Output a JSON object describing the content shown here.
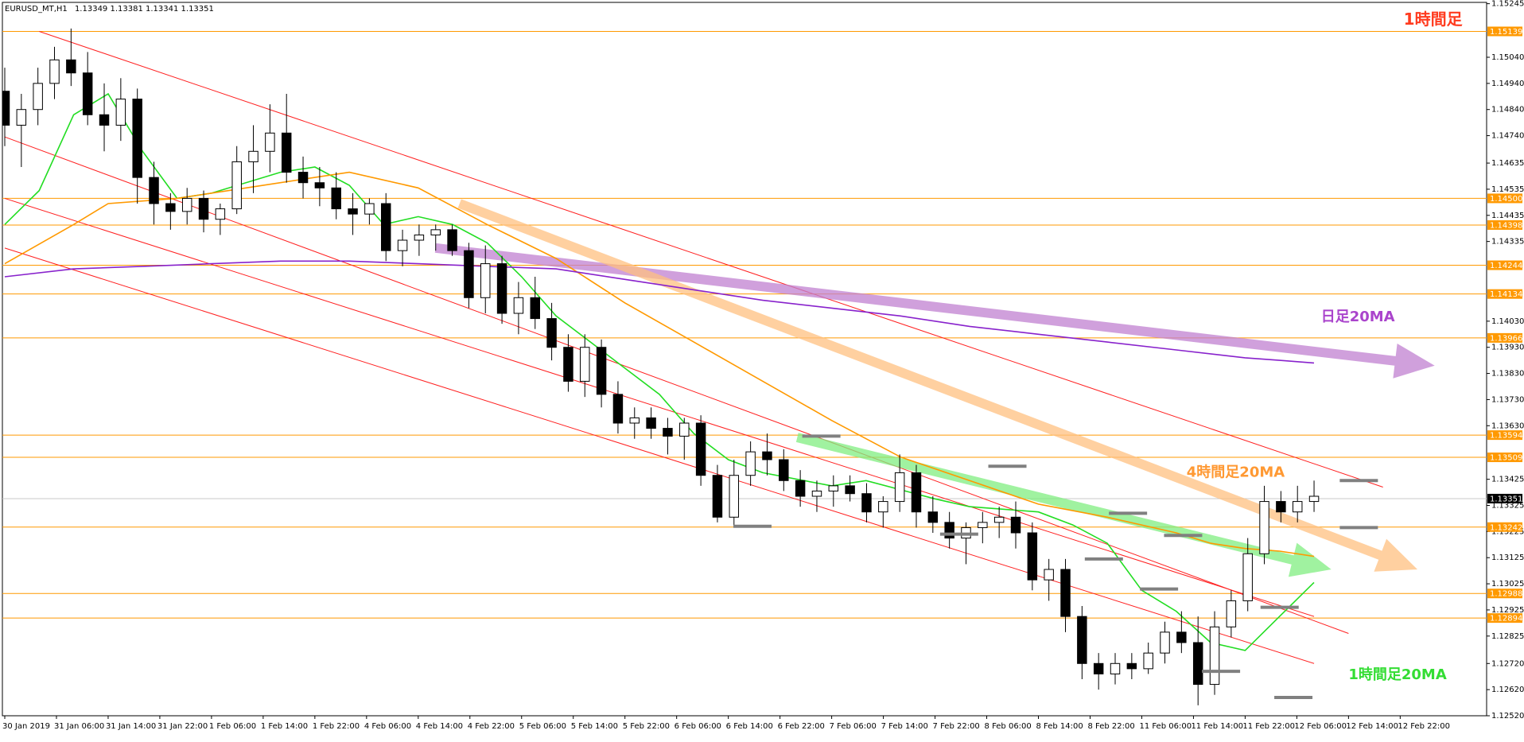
{
  "header": {
    "symbol": "EURUSD_MT,H1",
    "ohlc": "1.13349 1.13381 1.13341 1.13351"
  },
  "chart_data": {
    "type": "candlestick",
    "title": "1時間足",
    "ylim": [
      1.1252,
      1.1525
    ],
    "grid": false,
    "y_ticks": [
      "1.15245",
      "1.15040",
      "1.14940",
      "1.14840",
      "1.14740",
      "1.14635",
      "1.14535",
      "1.14435",
      "1.14335",
      "1.14030",
      "1.13930",
      "1.13830",
      "1.13730",
      "1.13630",
      "1.13425",
      "1.13325",
      "1.13225",
      "1.13125",
      "1.13025",
      "1.12925",
      "1.12825",
      "1.12720",
      "1.12620",
      "1.12520"
    ],
    "x_tick_labels": [
      "30 Jan 2019",
      "31 Jan 06:00",
      "31 Jan 14:00",
      "31 Jan 22:00",
      "1 Feb 06:00",
      "1 Feb 14:00",
      "1 Feb 22:00",
      "4 Feb 06:00",
      "4 Feb 14:00",
      "4 Feb 22:00",
      "5 Feb 06:00",
      "5 Feb 14:00",
      "5 Feb 22:00",
      "6 Feb 06:00",
      "6 Feb 14:00",
      "6 Feb 22:00",
      "7 Feb 06:00",
      "7 Feb 14:00",
      "7 Feb 22:00",
      "8 Feb 06:00",
      "8 Feb 14:00",
      "8 Feb 22:00",
      "11 Feb 06:00",
      "11 Feb 14:00",
      "11 Feb 22:00",
      "12 Feb 06:00",
      "12 Feb 14:00",
      "12 Feb 22:00"
    ],
    "horizontal_levels": [
      {
        "value": 1.15139,
        "label": "1.15139"
      },
      {
        "value": 1.145,
        "label": "1.14500"
      },
      {
        "value": 1.14398,
        "label": "1.14398"
      },
      {
        "value": 1.14244,
        "label": "1.14244"
      },
      {
        "value": 1.14134,
        "label": "1.14134"
      },
      {
        "value": 1.13966,
        "label": "1.13966"
      },
      {
        "value": 1.13594,
        "label": "1.13594"
      },
      {
        "value": 1.13509,
        "label": "1.13509"
      },
      {
        "value": 1.13242,
        "label": "1.13242"
      },
      {
        "value": 1.12988,
        "label": "1.12988"
      },
      {
        "value": 1.12894,
        "label": "1.12894"
      }
    ],
    "current_price": {
      "value": 1.13351,
      "label": "1.13351"
    },
    "channel_lines": [
      {
        "x": [
          1,
          40
        ],
        "y": [
          1.15139,
          1.13395
        ]
      },
      {
        "x": [
          0,
          39
        ],
        "y": [
          1.14735,
          1.12835
        ]
      },
      {
        "x": [
          0,
          38
        ],
        "y": [
          1.145,
          1.129
        ]
      },
      {
        "x": [
          0,
          38
        ],
        "y": [
          1.1431,
          1.1272
        ]
      }
    ],
    "ma_lines": [
      {
        "name": "green",
        "color": "#22dd22",
        "points": [
          [
            0,
            1.144
          ],
          [
            1,
            1.1453
          ],
          [
            2,
            1.1482
          ],
          [
            3,
            1.149
          ],
          [
            4,
            1.1468
          ],
          [
            5,
            1.145
          ],
          [
            6,
            1.1452
          ],
          [
            8,
            1.146
          ],
          [
            9,
            1.1462
          ],
          [
            10,
            1.1455
          ],
          [
            11,
            1.144
          ],
          [
            12,
            1.1443
          ],
          [
            13,
            1.144
          ],
          [
            14,
            1.1433
          ],
          [
            15,
            1.142
          ],
          [
            16,
            1.1405
          ],
          [
            17,
            1.1395
          ],
          [
            18,
            1.1385
          ],
          [
            19,
            1.1375
          ],
          [
            20,
            1.136
          ],
          [
            21,
            1.135
          ],
          [
            22,
            1.1345
          ],
          [
            24,
            1.134
          ],
          [
            25,
            1.1342
          ],
          [
            27,
            1.1335
          ],
          [
            28,
            1.1332
          ],
          [
            30,
            1.133
          ],
          [
            31,
            1.1325
          ],
          [
            32,
            1.1318
          ],
          [
            33,
            1.13
          ],
          [
            34,
            1.1292
          ],
          [
            35,
            1.128
          ],
          [
            36,
            1.1277
          ],
          [
            37,
            1.129
          ],
          [
            38,
            1.1303
          ]
        ]
      },
      {
        "name": "orange",
        "color": "#ff9900",
        "points": [
          [
            0,
            1.1425
          ],
          [
            2,
            1.144
          ],
          [
            3,
            1.1448
          ],
          [
            5,
            1.145
          ],
          [
            7,
            1.1454
          ],
          [
            9,
            1.1458
          ],
          [
            10,
            1.146
          ],
          [
            12,
            1.1454
          ],
          [
            14,
            1.144
          ],
          [
            16,
            1.1427
          ],
          [
            18,
            1.141
          ],
          [
            20,
            1.1395
          ],
          [
            22,
            1.138
          ],
          [
            24,
            1.1365
          ],
          [
            26,
            1.1351
          ],
          [
            28,
            1.1342
          ],
          [
            30,
            1.1333
          ],
          [
            32,
            1.1328
          ],
          [
            34,
            1.1322
          ],
          [
            35,
            1.1318
          ],
          [
            36,
            1.1316
          ],
          [
            37,
            1.1315
          ],
          [
            38,
            1.1313
          ]
        ]
      },
      {
        "name": "purple",
        "color": "#8822cc",
        "points": [
          [
            0,
            1.142
          ],
          [
            2,
            1.1423
          ],
          [
            4,
            1.1424
          ],
          [
            6,
            1.1425
          ],
          [
            8,
            1.1426
          ],
          [
            10,
            1.1426
          ],
          [
            12,
            1.1425
          ],
          [
            14,
            1.1424
          ],
          [
            16,
            1.1423
          ],
          [
            18,
            1.1419
          ],
          [
            20,
            1.1415
          ],
          [
            22,
            1.1411
          ],
          [
            24,
            1.1408
          ],
          [
            26,
            1.1405
          ],
          [
            28,
            1.1401
          ],
          [
            30,
            1.1398
          ],
          [
            32,
            1.1395
          ],
          [
            34,
            1.1392
          ],
          [
            36,
            1.1389
          ],
          [
            37,
            1.1388
          ],
          [
            38,
            1.1387
          ]
        ]
      }
    ],
    "candles": [
      [
        1.1491,
        1.15,
        1.147,
        1.1478
      ],
      [
        1.1478,
        1.149,
        1.1462,
        1.1484
      ],
      [
        1.1484,
        1.15,
        1.1478,
        1.1494
      ],
      [
        1.1494,
        1.1508,
        1.1488,
        1.1503
      ],
      [
        1.1503,
        1.1515,
        1.1493,
        1.1498
      ],
      [
        1.1498,
        1.1506,
        1.1478,
        1.1482
      ],
      [
        1.1482,
        1.1494,
        1.1468,
        1.1478
      ],
      [
        1.1478,
        1.1496,
        1.1472,
        1.1488
      ],
      [
        1.1488,
        1.1492,
        1.1448,
        1.1458
      ],
      [
        1.1458,
        1.1464,
        1.144,
        1.1448
      ],
      [
        1.1448,
        1.1452,
        1.1438,
        1.1445
      ],
      [
        1.1445,
        1.1454,
        1.144,
        1.145
      ],
      [
        1.145,
        1.1453,
        1.1437,
        1.1442
      ],
      [
        1.1442,
        1.1448,
        1.1436,
        1.1446
      ],
      [
        1.1446,
        1.147,
        1.1444,
        1.1464
      ],
      [
        1.1464,
        1.1478,
        1.1452,
        1.1468
      ],
      [
        1.1468,
        1.1486,
        1.146,
        1.1475
      ],
      [
        1.1475,
        1.149,
        1.1456,
        1.146
      ],
      [
        1.146,
        1.1466,
        1.145,
        1.1456
      ],
      [
        1.1456,
        1.1462,
        1.1447,
        1.1454
      ],
      [
        1.1454,
        1.146,
        1.1442,
        1.1446
      ],
      [
        1.1446,
        1.1452,
        1.1436,
        1.1444
      ],
      [
        1.1444,
        1.145,
        1.144,
        1.1448
      ],
      [
        1.1448,
        1.1452,
        1.1426,
        1.143
      ],
      [
        1.143,
        1.1438,
        1.1424,
        1.1434
      ],
      [
        1.1434,
        1.144,
        1.1428,
        1.1436
      ],
      [
        1.1436,
        1.144,
        1.143,
        1.1438
      ],
      [
        1.1438,
        1.144,
        1.1428,
        1.143
      ],
      [
        1.143,
        1.1433,
        1.1408,
        1.1412
      ],
      [
        1.1412,
        1.1432,
        1.1406,
        1.1425
      ],
      [
        1.1425,
        1.1428,
        1.1402,
        1.1406
      ],
      [
        1.1406,
        1.1418,
        1.1398,
        1.1412
      ],
      [
        1.1412,
        1.142,
        1.14,
        1.1404
      ],
      [
        1.1404,
        1.141,
        1.1388,
        1.1393
      ],
      [
        1.1393,
        1.1398,
        1.1376,
        1.138
      ],
      [
        1.138,
        1.1398,
        1.1374,
        1.1393
      ],
      [
        1.1393,
        1.1396,
        1.137,
        1.1375
      ],
      [
        1.1375,
        1.138,
        1.136,
        1.1364
      ],
      [
        1.1364,
        1.137,
        1.1358,
        1.1366
      ],
      [
        1.1366,
        1.137,
        1.1358,
        1.1362
      ],
      [
        1.1362,
        1.1366,
        1.1352,
        1.1359
      ],
      [
        1.1359,
        1.1366,
        1.135,
        1.1364
      ],
      [
        1.1364,
        1.1367,
        1.134,
        1.1344
      ],
      [
        1.1344,
        1.1348,
        1.1326,
        1.1328
      ],
      [
        1.1328,
        1.135,
        1.1324,
        1.1344
      ],
      [
        1.1344,
        1.1357,
        1.134,
        1.1353
      ],
      [
        1.1353,
        1.136,
        1.1344,
        1.135
      ],
      [
        1.135,
        1.1354,
        1.1338,
        1.1342
      ],
      [
        1.1342,
        1.1346,
        1.1332,
        1.1336
      ],
      [
        1.1336,
        1.1342,
        1.133,
        1.1338
      ],
      [
        1.1338,
        1.1344,
        1.1332,
        1.134
      ],
      [
        1.134,
        1.1344,
        1.1334,
        1.1337
      ],
      [
        1.1337,
        1.1341,
        1.1326,
        1.133
      ],
      [
        1.133,
        1.1336,
        1.1324,
        1.1334
      ],
      [
        1.1334,
        1.1352,
        1.133,
        1.1345
      ],
      [
        1.1345,
        1.1348,
        1.1324,
        1.133
      ],
      [
        1.133,
        1.1336,
        1.1322,
        1.1326
      ],
      [
        1.1326,
        1.133,
        1.1316,
        1.132
      ],
      [
        1.132,
        1.1326,
        1.131,
        1.1324
      ],
      [
        1.1324,
        1.133,
        1.1318,
        1.1326
      ],
      [
        1.1326,
        1.1332,
        1.132,
        1.1328
      ],
      [
        1.1328,
        1.1334,
        1.1316,
        1.1322
      ],
      [
        1.1322,
        1.1326,
        1.13,
        1.1304
      ],
      [
        1.1304,
        1.1312,
        1.1296,
        1.1308
      ],
      [
        1.1308,
        1.1312,
        1.1284,
        1.129
      ],
      [
        1.129,
        1.1294,
        1.1266,
        1.1272
      ],
      [
        1.1272,
        1.1276,
        1.1262,
        1.1268
      ],
      [
        1.1268,
        1.1276,
        1.1264,
        1.1272
      ],
      [
        1.1272,
        1.1276,
        1.1266,
        1.127
      ],
      [
        1.127,
        1.128,
        1.1268,
        1.1276
      ],
      [
        1.1276,
        1.1288,
        1.1272,
        1.1284
      ],
      [
        1.1284,
        1.1292,
        1.1276,
        1.128
      ],
      [
        1.128,
        1.129,
        1.1256,
        1.1264
      ],
      [
        1.1264,
        1.1292,
        1.126,
        1.1286
      ],
      [
        1.1286,
        1.13,
        1.1282,
        1.1296
      ],
      [
        1.1296,
        1.132,
        1.1292,
        1.1314
      ],
      [
        1.1314,
        1.134,
        1.131,
        1.1334
      ],
      [
        1.1334,
        1.1338,
        1.1326,
        1.133
      ],
      [
        1.133,
        1.134,
        1.1326,
        1.1334
      ],
      [
        1.1334,
        1.1342,
        1.133,
        1.1336
      ]
    ],
    "support_resistance_marks": [
      {
        "x": 23.7,
        "y": 1.1359
      },
      {
        "x": 21.7,
        "y": 1.13245
      },
      {
        "x": 29.1,
        "y": 1.13475
      },
      {
        "x": 27.7,
        "y": 1.13215
      },
      {
        "x": 31.9,
        "y": 1.1312
      },
      {
        "x": 32.6,
        "y": 1.13295
      },
      {
        "x": 33.5,
        "y": 1.13005
      },
      {
        "x": 34.2,
        "y": 1.1321
      },
      {
        "x": 35.3,
        "y": 1.1269
      },
      {
        "x": 37.0,
        "y": 1.12935
      },
      {
        "x": 37.4,
        "y": 1.1259
      },
      {
        "x": 39.3,
        "y": 1.1342
      },
      {
        "x": 39.3,
        "y": 1.1324
      }
    ],
    "trend_arrows": [
      {
        "color": "#c080d0",
        "from": [
          12.5,
          1.1431
        ],
        "to": [
          41.5,
          1.1386
        ]
      },
      {
        "color": "#ffc080",
        "from": [
          13.2,
          1.1448
        ],
        "to": [
          41.0,
          1.1308
        ]
      },
      {
        "color": "#80ee80",
        "from": [
          23.0,
          1.13585
        ],
        "to": [
          38.5,
          1.1308
        ]
      }
    ],
    "annotations": [
      {
        "text": "1時間足",
        "color": "#ff3b1f",
        "x": 40.6,
        "y": 1.15165,
        "size": 20
      },
      {
        "text": "日足20MA",
        "color": "#aa44cc",
        "x": 38.2,
        "y": 1.1403,
        "size": 18
      },
      {
        "text": "4時間足20MA",
        "color": "#ff9933",
        "x": 34.3,
        "y": 1.13435,
        "size": 18
      },
      {
        "text": "1時間足20MA",
        "color": "#33dd33",
        "x": 39.0,
        "y": 1.1266,
        "size": 18
      }
    ]
  }
}
